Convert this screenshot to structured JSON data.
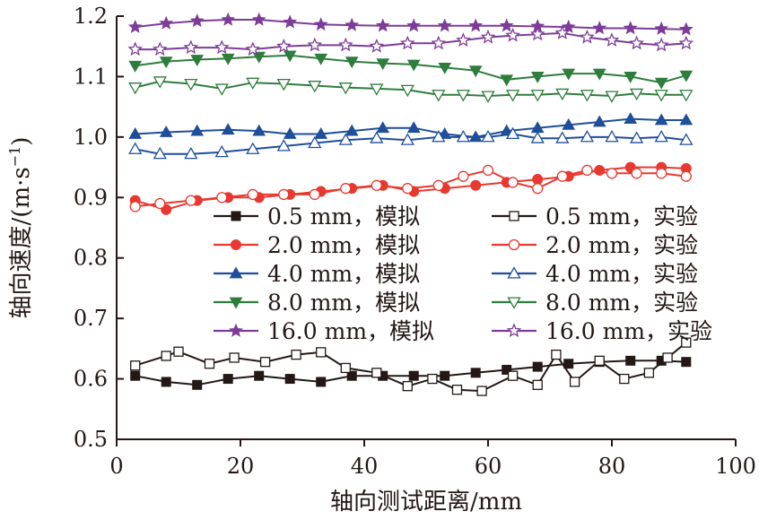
{
  "chart_data": {
    "type": "line",
    "xlabel": "轴向测试距离/mm",
    "ylabel_parts": [
      "轴向速度/(m·s",
      "−1",
      ")"
    ],
    "xlim": [
      0,
      100
    ],
    "ylim": [
      0.5,
      1.2
    ],
    "xticks": [
      0,
      20,
      40,
      60,
      80,
      100
    ],
    "yticks": [
      0.5,
      0.6,
      0.7,
      0.8,
      0.9,
      1.0,
      1.1,
      1.2
    ],
    "xtick_labels": [
      "0",
      "20",
      "40",
      "60",
      "80",
      "100"
    ],
    "ytick_labels": [
      "0.5",
      "0.6",
      "0.7",
      "0.8",
      "0.9",
      "1.0",
      "1.1",
      "1.2"
    ],
    "grid": false,
    "legend_position": "center",
    "series": [
      {
        "name": "0.5 mm，模拟",
        "color": "#231815",
        "marker": "square-filled",
        "x": [
          3,
          8,
          13,
          18,
          23,
          28,
          33,
          38,
          43,
          48,
          53,
          58,
          63,
          68,
          73,
          78,
          83,
          88,
          92
        ],
        "y": [
          0.605,
          0.595,
          0.59,
          0.6,
          0.605,
          0.6,
          0.595,
          0.605,
          0.605,
          0.605,
          0.605,
          0.61,
          0.615,
          0.62,
          0.625,
          0.628,
          0.63,
          0.63,
          0.628
        ]
      },
      {
        "name": "2.0 mm，模拟",
        "color": "#e8382f",
        "marker": "circle-filled",
        "x": [
          3,
          8,
          13,
          18,
          23,
          28,
          33,
          38,
          43,
          48,
          53,
          58,
          63,
          68,
          73,
          78,
          83,
          88,
          92
        ],
        "y": [
          0.895,
          0.88,
          0.895,
          0.9,
          0.9,
          0.905,
          0.91,
          0.915,
          0.92,
          0.91,
          0.915,
          0.92,
          0.925,
          0.93,
          0.935,
          0.945,
          0.95,
          0.95,
          0.948
        ]
      },
      {
        "name": "4.0 mm，模拟",
        "color": "#1f4e9b",
        "marker": "triangle-up-filled",
        "x": [
          3,
          8,
          13,
          18,
          23,
          28,
          33,
          38,
          43,
          48,
          53,
          58,
          63,
          68,
          73,
          78,
          83,
          88,
          92
        ],
        "y": [
          1.005,
          1.008,
          1.01,
          1.012,
          1.01,
          1.005,
          1.005,
          1.01,
          1.015,
          1.015,
          1.005,
          1.0,
          1.01,
          1.015,
          1.02,
          1.025,
          1.03,
          1.028,
          1.028
        ]
      },
      {
        "name": "8.0 mm，模拟",
        "color": "#2e7d3c",
        "marker": "triangle-down-filled",
        "x": [
          3,
          8,
          13,
          18,
          23,
          28,
          33,
          38,
          43,
          48,
          53,
          58,
          63,
          68,
          73,
          78,
          83,
          88,
          92
        ],
        "y": [
          1.118,
          1.125,
          1.128,
          1.13,
          1.133,
          1.135,
          1.13,
          1.125,
          1.122,
          1.12,
          1.115,
          1.11,
          1.095,
          1.1,
          1.105,
          1.105,
          1.1,
          1.09,
          1.102
        ]
      },
      {
        "name": "16.0 mm，模拟",
        "color": "#7d3c98",
        "marker": "star-filled",
        "x": [
          3,
          8,
          13,
          18,
          23,
          28,
          33,
          38,
          43,
          48,
          53,
          58,
          63,
          68,
          73,
          78,
          83,
          88,
          92
        ],
        "y": [
          1.182,
          1.188,
          1.192,
          1.194,
          1.194,
          1.19,
          1.186,
          1.185,
          1.184,
          1.184,
          1.184,
          1.184,
          1.184,
          1.183,
          1.182,
          1.18,
          1.18,
          1.179,
          1.178
        ]
      },
      {
        "name": "0.5 mm，实验",
        "color": "#231815",
        "marker": "square-open",
        "x": [
          3,
          8,
          10,
          15,
          19,
          24,
          29,
          33,
          37,
          42,
          47,
          51,
          55,
          59,
          64,
          68,
          71,
          74,
          78,
          82,
          86,
          89,
          92
        ],
        "y": [
          0.622,
          0.638,
          0.645,
          0.625,
          0.635,
          0.628,
          0.64,
          0.644,
          0.618,
          0.61,
          0.588,
          0.6,
          0.582,
          0.58,
          0.605,
          0.59,
          0.64,
          0.595,
          0.63,
          0.6,
          0.61,
          0.635,
          0.66
        ]
      },
      {
        "name": "2.0 mm，实验",
        "color": "#e8382f",
        "marker": "circle-open",
        "x": [
          3,
          7,
          12,
          17,
          22,
          27,
          32,
          37,
          42,
          47,
          52,
          56,
          60,
          64,
          68,
          72,
          76,
          80,
          84,
          88,
          92
        ],
        "y": [
          0.885,
          0.89,
          0.895,
          0.9,
          0.905,
          0.905,
          0.905,
          0.915,
          0.92,
          0.915,
          0.92,
          0.935,
          0.945,
          0.925,
          0.915,
          0.935,
          0.945,
          0.94,
          0.94,
          0.94,
          0.935
        ]
      },
      {
        "name": "4.0 mm，实验",
        "color": "#1f4e9b",
        "marker": "triangle-up-open",
        "x": [
          3,
          7,
          12,
          17,
          22,
          27,
          32,
          37,
          42,
          47,
          52,
          56,
          60,
          64,
          68,
          72,
          76,
          80,
          84,
          88,
          92
        ],
        "y": [
          0.98,
          0.972,
          0.972,
          0.975,
          0.98,
          0.985,
          0.99,
          0.995,
          0.998,
          0.995,
          1.0,
          1.0,
          1.0,
          1.005,
          0.998,
          0.998,
          1.0,
          1.0,
          0.998,
          1.0,
          0.995
        ]
      },
      {
        "name": "8.0 mm，实验",
        "color": "#2e7d3c",
        "marker": "triangle-down-open",
        "x": [
          3,
          7,
          12,
          17,
          22,
          27,
          32,
          37,
          42,
          47,
          52,
          56,
          60,
          64,
          68,
          72,
          76,
          80,
          84,
          88,
          92
        ],
        "y": [
          1.082,
          1.092,
          1.088,
          1.08,
          1.09,
          1.088,
          1.085,
          1.082,
          1.08,
          1.078,
          1.07,
          1.07,
          1.068,
          1.07,
          1.07,
          1.072,
          1.07,
          1.068,
          1.072,
          1.07,
          1.07
        ]
      },
      {
        "name": "16.0 mm，实验",
        "color": "#7d3c98",
        "marker": "star-open",
        "x": [
          3,
          7,
          12,
          17,
          22,
          27,
          32,
          37,
          42,
          47,
          52,
          56,
          60,
          64,
          68,
          72,
          76,
          80,
          84,
          88,
          92
        ],
        "y": [
          1.145,
          1.145,
          1.148,
          1.148,
          1.145,
          1.15,
          1.152,
          1.152,
          1.15,
          1.155,
          1.155,
          1.16,
          1.165,
          1.168,
          1.17,
          1.172,
          1.165,
          1.16,
          1.155,
          1.152,
          1.155
        ]
      }
    ]
  }
}
